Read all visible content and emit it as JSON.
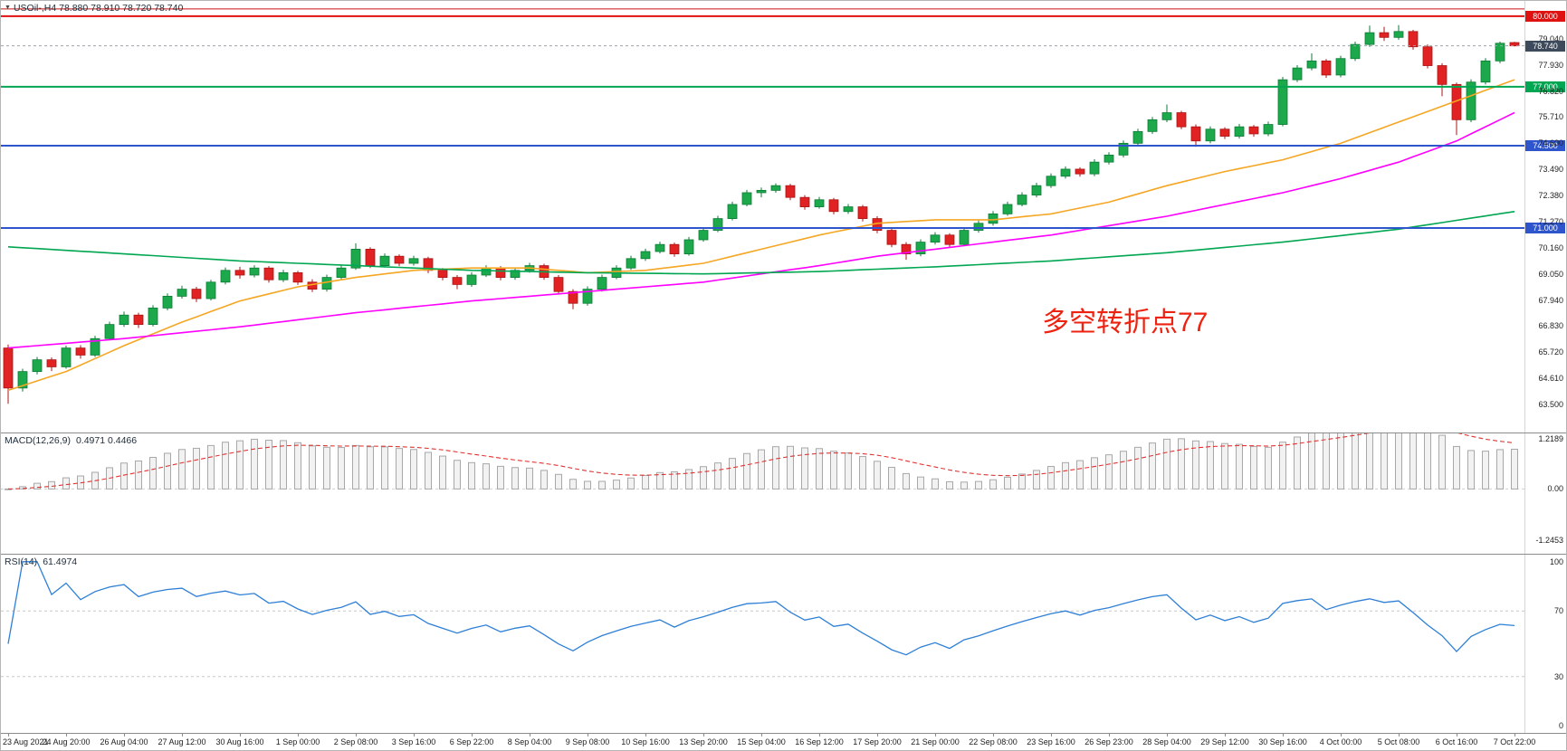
{
  "icons": {
    "dropdown": "▼"
  },
  "header": {
    "display": "USOil-,H4  78.880 78.910 78.720 78.740",
    "symbol": "USOil-",
    "timeframe": "H4",
    "open": "78.880",
    "high": "78.910",
    "low": "78.720",
    "close": "78.740"
  },
  "chart_data": {
    "type": "candlestick",
    "title": "USOil- H4 chart with MACD and RSI",
    "time_labels": [
      "23 Aug 2021",
      "24 Aug 20:00",
      "26 Aug 04:00",
      "27 Aug 12:00",
      "30 Aug 16:00",
      "1 Sep 00:00",
      "2 Sep 08:00",
      "3 Sep 16:00",
      "6 Sep 22:00",
      "8 Sep 04:00",
      "9 Sep 08:00",
      "10 Sep 16:00",
      "13 Sep 20:00",
      "15 Sep 04:00",
      "16 Sep 12:00",
      "17 Sep 20:00",
      "21 Sep 00:00",
      "22 Sep 08:00",
      "23 Sep 16:00",
      "26 Sep 23:00",
      "28 Sep 04:00",
      "29 Sep 12:00",
      "30 Sep 16:00",
      "4 Oct 00:00",
      "5 Oct 08:00",
      "6 Oct 16:00",
      "7 Oct 22:00"
    ],
    "candles_ohlc": [
      [
        65.9,
        66.05,
        63.53,
        64.2
      ],
      [
        64.2,
        65.02,
        64.05,
        64.9
      ],
      [
        64.9,
        65.52,
        64.78,
        65.4
      ],
      [
        65.4,
        65.5,
        64.92,
        65.1
      ],
      [
        65.1,
        66.0,
        65.02,
        65.9
      ],
      [
        65.9,
        66.02,
        65.45,
        65.6
      ],
      [
        65.6,
        66.42,
        65.52,
        66.3
      ],
      [
        66.3,
        67.02,
        66.22,
        66.9
      ],
      [
        66.9,
        67.45,
        66.8,
        67.3
      ],
      [
        67.3,
        67.4,
        66.75,
        66.9
      ],
      [
        66.9,
        67.72,
        66.82,
        67.6
      ],
      [
        67.6,
        68.22,
        67.5,
        68.1
      ],
      [
        68.1,
        68.55,
        68.0,
        68.4
      ],
      [
        68.4,
        68.5,
        67.85,
        68.0
      ],
      [
        68.0,
        68.8,
        67.92,
        68.7
      ],
      [
        68.7,
        69.32,
        68.6,
        69.2
      ],
      [
        69.2,
        69.35,
        68.85,
        69.0
      ],
      [
        69.0,
        69.42,
        68.9,
        69.3
      ],
      [
        69.3,
        69.38,
        68.68,
        68.8
      ],
      [
        68.8,
        69.22,
        68.7,
        69.1
      ],
      [
        69.1,
        69.18,
        68.58,
        68.7
      ],
      [
        68.7,
        68.82,
        68.28,
        68.4
      ],
      [
        68.4,
        69.02,
        68.3,
        68.9
      ],
      [
        68.9,
        69.42,
        68.8,
        69.3
      ],
      [
        69.3,
        70.35,
        69.22,
        70.1
      ],
      [
        70.1,
        70.18,
        69.3,
        69.4
      ],
      [
        69.4,
        69.92,
        69.32,
        69.8
      ],
      [
        69.8,
        69.88,
        69.38,
        69.5
      ],
      [
        69.5,
        69.82,
        69.4,
        69.7
      ],
      [
        69.7,
        69.78,
        69.08,
        69.2
      ],
      [
        69.2,
        69.3,
        68.78,
        68.9
      ],
      [
        68.9,
        69.0,
        68.4,
        68.6
      ],
      [
        68.6,
        69.12,
        68.5,
        69.0
      ],
      [
        69.0,
        69.42,
        68.92,
        69.3
      ],
      [
        69.3,
        69.38,
        68.78,
        68.9
      ],
      [
        68.9,
        69.32,
        68.8,
        69.2
      ],
      [
        69.2,
        69.52,
        69.1,
        69.4
      ],
      [
        69.4,
        69.48,
        68.8,
        68.9
      ],
      [
        68.9,
        69.0,
        68.18,
        68.3
      ],
      [
        68.3,
        68.4,
        67.55,
        67.8
      ],
      [
        67.8,
        68.52,
        67.7,
        68.4
      ],
      [
        68.4,
        69.02,
        68.3,
        68.9
      ],
      [
        68.9,
        69.42,
        68.82,
        69.3
      ],
      [
        69.3,
        69.82,
        69.22,
        69.7
      ],
      [
        69.7,
        70.12,
        69.6,
        70.0
      ],
      [
        70.0,
        70.42,
        69.92,
        70.3
      ],
      [
        70.3,
        70.38,
        69.78,
        69.9
      ],
      [
        69.9,
        70.62,
        69.82,
        70.5
      ],
      [
        70.5,
        71.02,
        70.42,
        70.9
      ],
      [
        70.9,
        71.52,
        70.82,
        71.4
      ],
      [
        71.4,
        72.12,
        71.32,
        72.0
      ],
      [
        72.0,
        72.62,
        71.92,
        72.5
      ],
      [
        72.5,
        72.72,
        72.3,
        72.6
      ],
      [
        72.6,
        72.9,
        72.5,
        72.8
      ],
      [
        72.8,
        72.88,
        72.18,
        72.3
      ],
      [
        72.3,
        72.4,
        71.78,
        71.9
      ],
      [
        71.9,
        72.32,
        71.82,
        72.2
      ],
      [
        72.2,
        72.28,
        71.58,
        71.7
      ],
      [
        71.7,
        72.02,
        71.6,
        71.9
      ],
      [
        71.9,
        71.98,
        71.28,
        71.4
      ],
      [
        71.4,
        71.5,
        70.78,
        70.9
      ],
      [
        70.9,
        71.0,
        70.18,
        70.3
      ],
      [
        70.3,
        70.4,
        69.65,
        69.9
      ],
      [
        69.9,
        70.52,
        69.8,
        70.4
      ],
      [
        70.4,
        70.82,
        70.3,
        70.7
      ],
      [
        70.7,
        70.78,
        70.18,
        70.3
      ],
      [
        70.3,
        71.02,
        70.22,
        70.9
      ],
      [
        70.9,
        71.32,
        70.8,
        71.2
      ],
      [
        71.2,
        71.72,
        71.1,
        71.6
      ],
      [
        71.6,
        72.12,
        71.52,
        72.0
      ],
      [
        72.0,
        72.52,
        71.92,
        72.4
      ],
      [
        72.4,
        72.92,
        72.3,
        72.8
      ],
      [
        72.8,
        73.32,
        72.7,
        73.2
      ],
      [
        73.2,
        73.62,
        73.1,
        73.5
      ],
      [
        73.5,
        73.58,
        73.18,
        73.3
      ],
      [
        73.3,
        73.92,
        73.2,
        73.8
      ],
      [
        73.8,
        74.22,
        73.7,
        74.1
      ],
      [
        74.1,
        74.72,
        74.0,
        74.6
      ],
      [
        74.6,
        75.22,
        74.52,
        75.1
      ],
      [
        75.1,
        75.72,
        75.0,
        75.6
      ],
      [
        75.6,
        76.25,
        75.5,
        75.9
      ],
      [
        75.9,
        75.98,
        75.2,
        75.3
      ],
      [
        75.3,
        75.4,
        74.45,
        74.7
      ],
      [
        74.7,
        75.32,
        74.6,
        75.2
      ],
      [
        75.2,
        75.28,
        74.78,
        74.9
      ],
      [
        74.9,
        75.42,
        74.8,
        75.3
      ],
      [
        75.3,
        75.38,
        74.88,
        75.0
      ],
      [
        75.0,
        75.52,
        74.9,
        75.4
      ],
      [
        75.4,
        77.42,
        75.32,
        77.3
      ],
      [
        77.3,
        77.92,
        77.2,
        77.8
      ],
      [
        77.8,
        78.42,
        77.7,
        78.1
      ],
      [
        78.1,
        78.18,
        77.38,
        77.5
      ],
      [
        77.5,
        78.32,
        77.4,
        78.2
      ],
      [
        78.2,
        78.92,
        78.1,
        78.8
      ],
      [
        78.8,
        79.6,
        78.7,
        79.3
      ],
      [
        79.3,
        79.55,
        78.95,
        79.1
      ],
      [
        79.1,
        79.62,
        79.0,
        79.35
      ],
      [
        79.35,
        79.42,
        78.58,
        78.7
      ],
      [
        78.7,
        78.8,
        77.78,
        77.9
      ],
      [
        77.9,
        78.0,
        76.6,
        77.1
      ],
      [
        77.1,
        77.18,
        74.95,
        75.6
      ],
      [
        75.6,
        77.32,
        75.5,
        77.2
      ],
      [
        77.2,
        78.22,
        77.1,
        78.1
      ],
      [
        78.1,
        78.92,
        78.0,
        78.85
      ],
      [
        78.88,
        78.91,
        78.72,
        78.74
      ]
    ],
    "main": {
      "ylim": [
        62.31,
        80.65
      ],
      "yticks": [
        "79.040",
        "77.930",
        "76.820",
        "75.710",
        "74.600",
        "73.490",
        "72.380",
        "71.270",
        "70.160",
        "69.050",
        "67.940",
        "66.830",
        "65.720",
        "64.610",
        "63.500"
      ],
      "hlines": [
        {
          "price": 80.31,
          "color": "#cc1111",
          "width": 1,
          "label": null
        },
        {
          "price": 80.0,
          "color": "#e01111",
          "width": 2,
          "label": "80.000"
        },
        {
          "price": 77.0,
          "color": "#00a651",
          "width": 2,
          "label": "77.000"
        },
        {
          "price": 74.5,
          "color": "#2e55cc",
          "width": 2,
          "label": "74.500"
        },
        {
          "price": 71.0,
          "color": "#2e55cc",
          "width": 2,
          "label": "71.000"
        }
      ],
      "current_price": {
        "value": 78.74,
        "label": "78.740",
        "badge_color": "#3d4a5c",
        "line_color": "#9aa3ad"
      },
      "moving_averages": [
        {
          "name": "ma-fast-orange",
          "color": "#f5a623",
          "anchors": [
            [
              0,
              64.1
            ],
            [
              4,
              64.9
            ],
            [
              8,
              66.0
            ],
            [
              12,
              67.0
            ],
            [
              16,
              67.9
            ],
            [
              20,
              68.5
            ],
            [
              24,
              68.9
            ],
            [
              28,
              69.2
            ],
            [
              32,
              69.3
            ],
            [
              36,
              69.3
            ],
            [
              40,
              69.1
            ],
            [
              44,
              69.2
            ],
            [
              48,
              69.5
            ],
            [
              52,
              70.1
            ],
            [
              56,
              70.7
            ],
            [
              60,
              71.2
            ],
            [
              64,
              71.35
            ],
            [
              68,
              71.35
            ],
            [
              72,
              71.6
            ],
            [
              76,
              72.1
            ],
            [
              80,
              72.8
            ],
            [
              84,
              73.4
            ],
            [
              88,
              73.9
            ],
            [
              92,
              74.6
            ],
            [
              96,
              75.5
            ],
            [
              100,
              76.4
            ],
            [
              104,
              77.3
            ]
          ]
        },
        {
          "name": "ma-mid-magenta",
          "color": "#ff00ff",
          "anchors": [
            [
              0,
              65.9
            ],
            [
              8,
              66.3
            ],
            [
              16,
              66.8
            ],
            [
              24,
              67.4
            ],
            [
              32,
              67.9
            ],
            [
              40,
              68.3
            ],
            [
              48,
              68.7
            ],
            [
              56,
              69.4
            ],
            [
              60,
              69.8
            ],
            [
              64,
              70.1
            ],
            [
              68,
              70.4
            ],
            [
              72,
              70.7
            ],
            [
              76,
              71.1
            ],
            [
              80,
              71.5
            ],
            [
              84,
              72.0
            ],
            [
              88,
              72.5
            ],
            [
              92,
              73.1
            ],
            [
              96,
              73.8
            ],
            [
              100,
              74.7
            ],
            [
              104,
              75.9
            ]
          ]
        },
        {
          "name": "ma-slow-green",
          "color": "#00a651",
          "anchors": [
            [
              0,
              70.2
            ],
            [
              8,
              69.9
            ],
            [
              16,
              69.6
            ],
            [
              24,
              69.4
            ],
            [
              32,
              69.2
            ],
            [
              40,
              69.1
            ],
            [
              48,
              69.05
            ],
            [
              56,
              69.15
            ],
            [
              64,
              69.35
            ],
            [
              72,
              69.6
            ],
            [
              80,
              69.95
            ],
            [
              88,
              70.4
            ],
            [
              96,
              70.95
            ],
            [
              104,
              71.7
            ]
          ]
        }
      ],
      "annotation": {
        "text": "多空转折点77",
        "color": "#ee2211",
        "x": 1150,
        "y": 330,
        "font_size": 30
      },
      "candle_up_color": "#1ba94c",
      "candle_up_stroke": "#0e7a36",
      "candle_down_color": "#e12222",
      "candle_down_stroke": "#a81414"
    },
    "macd": {
      "name": "MACD(12,26,9)",
      "values": "0.4971 0.4466",
      "fast": 12,
      "slow": 26,
      "signal": 9,
      "ylim": [
        -1.575,
        1.351
      ],
      "yticks": [
        "1.2189",
        "0.00",
        "-1.2453"
      ],
      "hist_fill": "#f2f2f2",
      "hist_stroke": "#a8a8a8",
      "signal_color": "#e03333"
    },
    "rsi": {
      "name": "RSI(14)",
      "value": "61.4974",
      "period": 14,
      "ylim": [
        -4.3,
        104.3
      ],
      "yticks": [
        "100",
        "70",
        "30",
        "0"
      ],
      "levels": [
        70,
        30
      ],
      "line_color": "#2e7fd6",
      "level_color": "#c8c8c8"
    }
  }
}
